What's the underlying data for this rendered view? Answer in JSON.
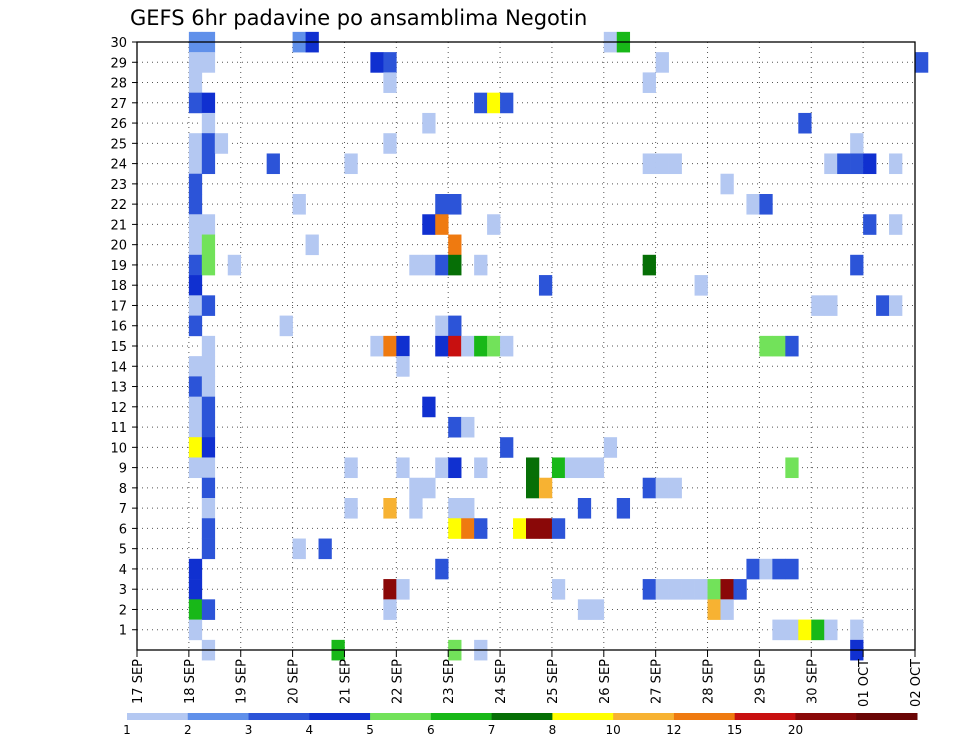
{
  "chart_data": {
    "type": "heatmap",
    "title": "GEFS 6hr padavine po ansamblima Negotin",
    "xlabel": "",
    "ylabel": "",
    "x_ticks": [
      "17 SEP",
      "18 SEP",
      "19 SEP",
      "20 SEP",
      "21 SEP",
      "22 SEP",
      "23 SEP",
      "24 SEP",
      "25 SEP",
      "26 SEP",
      "27 SEP",
      "28 SEP",
      "29 SEP",
      "30 SEP",
      "01 OCT",
      "02 OCT"
    ],
    "y_ticks": [
      1,
      2,
      3,
      4,
      5,
      6,
      7,
      8,
      9,
      10,
      11,
      12,
      13,
      14,
      15,
      16,
      17,
      18,
      19,
      20,
      21,
      22,
      23,
      24,
      25,
      26,
      27,
      28,
      29,
      30
    ],
    "ylim": [
      0,
      30
    ],
    "xlim_days": [
      0,
      15
    ],
    "steps_per_day": 4,
    "grid": true,
    "legend_placement": "bottom",
    "legend": {
      "levels": [
        "1",
        "2",
        "3",
        "4",
        "5",
        "6",
        "7",
        "8",
        "10",
        "12",
        "15",
        "20"
      ],
      "colors": [
        "#b4c8f2",
        "#6090ea",
        "#2c54d8",
        "#1030d0",
        "#72e25a",
        "#18b818",
        "#066f06",
        "#ffff00",
        "#f7b232",
        "#ef7a10",
        "#c81010",
        "#8a0808",
        "#6a0606"
      ]
    },
    "points": [
      {
        "member": 30,
        "day": 1.0,
        "bin": 1
      },
      {
        "member": 30,
        "day": 1.25,
        "bin": 1
      },
      {
        "member": 30,
        "day": 3.0,
        "bin": 1
      },
      {
        "member": 30,
        "day": 3.25,
        "bin": 3
      },
      {
        "member": 30,
        "day": 9.0,
        "bin": 0
      },
      {
        "member": 30,
        "day": 9.25,
        "bin": 5
      },
      {
        "member": 29,
        "day": 1.0,
        "bin": 0
      },
      {
        "member": 29,
        "day": 1.25,
        "bin": 0
      },
      {
        "member": 29,
        "day": 4.5,
        "bin": 3
      },
      {
        "member": 29,
        "day": 4.75,
        "bin": 2
      },
      {
        "member": 29,
        "day": 10.0,
        "bin": 0
      },
      {
        "member": 29,
        "day": 15.0,
        "bin": 2
      },
      {
        "member": 28,
        "day": 1.0,
        "bin": 0
      },
      {
        "member": 28,
        "day": 4.75,
        "bin": 0
      },
      {
        "member": 28,
        "day": 9.75,
        "bin": 0
      },
      {
        "member": 27,
        "day": 1.0,
        "bin": 2
      },
      {
        "member": 27,
        "day": 1.25,
        "bin": 3
      },
      {
        "member": 27,
        "day": 6.5,
        "bin": 2
      },
      {
        "member": 27,
        "day": 6.75,
        "bin": 7
      },
      {
        "member": 27,
        "day": 7.0,
        "bin": 2
      },
      {
        "member": 26,
        "day": 1.25,
        "bin": 0
      },
      {
        "member": 26,
        "day": 5.5,
        "bin": 0
      },
      {
        "member": 26,
        "day": 12.75,
        "bin": 2
      },
      {
        "member": 25,
        "day": 1.0,
        "bin": 0
      },
      {
        "member": 25,
        "day": 1.25,
        "bin": 2
      },
      {
        "member": 25,
        "day": 1.5,
        "bin": 0
      },
      {
        "member": 25,
        "day": 4.75,
        "bin": 0
      },
      {
        "member": 25,
        "day": 13.75,
        "bin": 0
      },
      {
        "member": 24,
        "day": 1.0,
        "bin": 0
      },
      {
        "member": 24,
        "day": 1.25,
        "bin": 2
      },
      {
        "member": 24,
        "day": 2.5,
        "bin": 2
      },
      {
        "member": 24,
        "day": 4.0,
        "bin": 0
      },
      {
        "member": 24,
        "day": 9.75,
        "bin": 0
      },
      {
        "member": 24,
        "day": 10.0,
        "bin": 0
      },
      {
        "member": 24,
        "day": 10.25,
        "bin": 0
      },
      {
        "member": 24,
        "day": 13.25,
        "bin": 0
      },
      {
        "member": 24,
        "day": 13.5,
        "bin": 2
      },
      {
        "member": 24,
        "day": 13.75,
        "bin": 2
      },
      {
        "member": 24,
        "day": 14.0,
        "bin": 3
      },
      {
        "member": 24,
        "day": 14.5,
        "bin": 0
      },
      {
        "member": 23,
        "day": 1.0,
        "bin": 2
      },
      {
        "member": 23,
        "day": 11.25,
        "bin": 0
      },
      {
        "member": 22,
        "day": 1.0,
        "bin": 2
      },
      {
        "member": 22,
        "day": 3.0,
        "bin": 0
      },
      {
        "member": 22,
        "day": 5.75,
        "bin": 2
      },
      {
        "member": 22,
        "day": 6.0,
        "bin": 2
      },
      {
        "member": 22,
        "day": 11.75,
        "bin": 0
      },
      {
        "member": 22,
        "day": 12.0,
        "bin": 2
      },
      {
        "member": 21,
        "day": 1.0,
        "bin": 0
      },
      {
        "member": 21,
        "day": 1.25,
        "bin": 0
      },
      {
        "member": 21,
        "day": 5.5,
        "bin": 3
      },
      {
        "member": 21,
        "day": 5.75,
        "bin": 9
      },
      {
        "member": 21,
        "day": 6.75,
        "bin": 0
      },
      {
        "member": 21,
        "day": 14.0,
        "bin": 2
      },
      {
        "member": 21,
        "day": 14.5,
        "bin": 0
      },
      {
        "member": 20,
        "day": 1.0,
        "bin": 0
      },
      {
        "member": 20,
        "day": 1.25,
        "bin": 4
      },
      {
        "member": 20,
        "day": 3.25,
        "bin": 0
      },
      {
        "member": 20,
        "day": 6.0,
        "bin": 9
      },
      {
        "member": 19,
        "day": 1.0,
        "bin": 2
      },
      {
        "member": 19,
        "day": 1.25,
        "bin": 4
      },
      {
        "member": 19,
        "day": 1.75,
        "bin": 0
      },
      {
        "member": 19,
        "day": 5.25,
        "bin": 0
      },
      {
        "member": 19,
        "day": 5.5,
        "bin": 0
      },
      {
        "member": 19,
        "day": 5.75,
        "bin": 2
      },
      {
        "member": 19,
        "day": 6.0,
        "bin": 6
      },
      {
        "member": 19,
        "day": 6.5,
        "bin": 0
      },
      {
        "member": 19,
        "day": 9.75,
        "bin": 6
      },
      {
        "member": 19,
        "day": 13.75,
        "bin": 2
      },
      {
        "member": 18,
        "day": 1.0,
        "bin": 3
      },
      {
        "member": 18,
        "day": 7.75,
        "bin": 2
      },
      {
        "member": 18,
        "day": 10.75,
        "bin": 0
      },
      {
        "member": 17,
        "day": 1.0,
        "bin": 0
      },
      {
        "member": 17,
        "day": 1.25,
        "bin": 2
      },
      {
        "member": 17,
        "day": 13.0,
        "bin": 0
      },
      {
        "member": 17,
        "day": 13.25,
        "bin": 0
      },
      {
        "member": 17,
        "day": 14.25,
        "bin": 2
      },
      {
        "member": 17,
        "day": 14.5,
        "bin": 0
      },
      {
        "member": 16,
        "day": 1.0,
        "bin": 2
      },
      {
        "member": 16,
        "day": 2.75,
        "bin": 0
      },
      {
        "member": 16,
        "day": 5.75,
        "bin": 0
      },
      {
        "member": 16,
        "day": 6.0,
        "bin": 2
      },
      {
        "member": 15,
        "day": 1.25,
        "bin": 0
      },
      {
        "member": 15,
        "day": 4.5,
        "bin": 0
      },
      {
        "member": 15,
        "day": 4.75,
        "bin": 9
      },
      {
        "member": 15,
        "day": 5.0,
        "bin": 3
      },
      {
        "member": 15,
        "day": 5.75,
        "bin": 3
      },
      {
        "member": 15,
        "day": 6.0,
        "bin": 10
      },
      {
        "member": 15,
        "day": 6.25,
        "bin": 0
      },
      {
        "member": 15,
        "day": 6.5,
        "bin": 5
      },
      {
        "member": 15,
        "day": 6.75,
        "bin": 4
      },
      {
        "member": 15,
        "day": 7.0,
        "bin": 0
      },
      {
        "member": 15,
        "day": 12.0,
        "bin": 4
      },
      {
        "member": 15,
        "day": 12.25,
        "bin": 4
      },
      {
        "member": 15,
        "day": 12.5,
        "bin": 2
      },
      {
        "member": 14,
        "day": 1.0,
        "bin": 0
      },
      {
        "member": 14,
        "day": 1.25,
        "bin": 0
      },
      {
        "member": 14,
        "day": 5.0,
        "bin": 0
      },
      {
        "member": 13,
        "day": 1.0,
        "bin": 2
      },
      {
        "member": 13,
        "day": 1.25,
        "bin": 0
      },
      {
        "member": 12,
        "day": 1.0,
        "bin": 0
      },
      {
        "member": 12,
        "day": 1.25,
        "bin": 2
      },
      {
        "member": 12,
        "day": 5.5,
        "bin": 3
      },
      {
        "member": 11,
        "day": 1.0,
        "bin": 0
      },
      {
        "member": 11,
        "day": 1.25,
        "bin": 2
      },
      {
        "member": 11,
        "day": 6.0,
        "bin": 2
      },
      {
        "member": 11,
        "day": 6.25,
        "bin": 0
      },
      {
        "member": 10,
        "day": 1.0,
        "bin": 7
      },
      {
        "member": 10,
        "day": 1.25,
        "bin": 3
      },
      {
        "member": 10,
        "day": 7.0,
        "bin": 2
      },
      {
        "member": 10,
        "day": 9.0,
        "bin": 0
      },
      {
        "member": 9,
        "day": 1.0,
        "bin": 0
      },
      {
        "member": 9,
        "day": 1.25,
        "bin": 0
      },
      {
        "member": 9,
        "day": 4.0,
        "bin": 0
      },
      {
        "member": 9,
        "day": 5.0,
        "bin": 0
      },
      {
        "member": 9,
        "day": 5.75,
        "bin": 0
      },
      {
        "member": 9,
        "day": 6.0,
        "bin": 3
      },
      {
        "member": 9,
        "day": 6.5,
        "bin": 0
      },
      {
        "member": 9,
        "day": 7.5,
        "bin": 6
      },
      {
        "member": 9,
        "day": 8.0,
        "bin": 5
      },
      {
        "member": 9,
        "day": 8.25,
        "bin": 0
      },
      {
        "member": 9,
        "day": 8.5,
        "bin": 0
      },
      {
        "member": 9,
        "day": 8.75,
        "bin": 0
      },
      {
        "member": 9,
        "day": 12.5,
        "bin": 4
      },
      {
        "member": 8,
        "day": 1.25,
        "bin": 2
      },
      {
        "member": 8,
        "day": 5.25,
        "bin": 0
      },
      {
        "member": 8,
        "day": 5.5,
        "bin": 0
      },
      {
        "member": 8,
        "day": 7.5,
        "bin": 6
      },
      {
        "member": 8,
        "day": 7.75,
        "bin": 8
      },
      {
        "member": 8,
        "day": 9.75,
        "bin": 2
      },
      {
        "member": 8,
        "day": 10.0,
        "bin": 0
      },
      {
        "member": 8,
        "day": 10.25,
        "bin": 0
      },
      {
        "member": 7,
        "day": 1.25,
        "bin": 0
      },
      {
        "member": 7,
        "day": 4.0,
        "bin": 0
      },
      {
        "member": 7,
        "day": 4.75,
        "bin": 8
      },
      {
        "member": 7,
        "day": 5.25,
        "bin": 0
      },
      {
        "member": 7,
        "day": 6.0,
        "bin": 0
      },
      {
        "member": 7,
        "day": 6.25,
        "bin": 0
      },
      {
        "member": 7,
        "day": 8.5,
        "bin": 2
      },
      {
        "member": 7,
        "day": 9.25,
        "bin": 2
      },
      {
        "member": 6,
        "day": 1.25,
        "bin": 2
      },
      {
        "member": 6,
        "day": 6.0,
        "bin": 7
      },
      {
        "member": 6,
        "day": 6.25,
        "bin": 9
      },
      {
        "member": 6,
        "day": 6.5,
        "bin": 2
      },
      {
        "member": 6,
        "day": 7.25,
        "bin": 7
      },
      {
        "member": 6,
        "day": 7.5,
        "bin": 11
      },
      {
        "member": 6,
        "day": 7.75,
        "bin": 11
      },
      {
        "member": 6,
        "day": 8.0,
        "bin": 2
      },
      {
        "member": 5,
        "day": 1.25,
        "bin": 2
      },
      {
        "member": 5,
        "day": 3.0,
        "bin": 0
      },
      {
        "member": 5,
        "day": 3.5,
        "bin": 2
      },
      {
        "member": 4,
        "day": 1.0,
        "bin": 3
      },
      {
        "member": 4,
        "day": 5.75,
        "bin": 2
      },
      {
        "member": 4,
        "day": 11.75,
        "bin": 2
      },
      {
        "member": 4,
        "day": 12.0,
        "bin": 0
      },
      {
        "member": 4,
        "day": 12.25,
        "bin": 2
      },
      {
        "member": 4,
        "day": 12.5,
        "bin": 2
      },
      {
        "member": 3,
        "day": 1.0,
        "bin": 3
      },
      {
        "member": 3,
        "day": 4.75,
        "bin": 11
      },
      {
        "member": 3,
        "day": 5.0,
        "bin": 0
      },
      {
        "member": 3,
        "day": 8.0,
        "bin": 0
      },
      {
        "member": 3,
        "day": 9.75,
        "bin": 2
      },
      {
        "member": 3,
        "day": 10.0,
        "bin": 0
      },
      {
        "member": 3,
        "day": 10.25,
        "bin": 0
      },
      {
        "member": 3,
        "day": 10.5,
        "bin": 0
      },
      {
        "member": 3,
        "day": 10.75,
        "bin": 0
      },
      {
        "member": 3,
        "day": 11.0,
        "bin": 4
      },
      {
        "member": 3,
        "day": 11.25,
        "bin": 11
      },
      {
        "member": 3,
        "day": 11.5,
        "bin": 2
      },
      {
        "member": 2,
        "day": 1.0,
        "bin": 5
      },
      {
        "member": 2,
        "day": 1.25,
        "bin": 2
      },
      {
        "member": 2,
        "day": 4.75,
        "bin": 0
      },
      {
        "member": 2,
        "day": 8.5,
        "bin": 0
      },
      {
        "member": 2,
        "day": 8.75,
        "bin": 0
      },
      {
        "member": 2,
        "day": 11.0,
        "bin": 8
      },
      {
        "member": 2,
        "day": 11.25,
        "bin": 0
      },
      {
        "member": 1,
        "day": 1.0,
        "bin": 0
      },
      {
        "member": 1,
        "day": 12.25,
        "bin": 0
      },
      {
        "member": 1,
        "day": 12.5,
        "bin": 0
      },
      {
        "member": 1,
        "day": 12.75,
        "bin": 7
      },
      {
        "member": 1,
        "day": 13.0,
        "bin": 5
      },
      {
        "member": 1,
        "day": 13.25,
        "bin": 0
      },
      {
        "member": 1,
        "day": 13.75,
        "bin": 0
      },
      {
        "member": 0,
        "day": 1.25,
        "bin": 0
      },
      {
        "member": 0,
        "day": 3.75,
        "bin": 5
      },
      {
        "member": 0,
        "day": 6.0,
        "bin": 4
      },
      {
        "member": 0,
        "day": 6.5,
        "bin": 0
      },
      {
        "member": 0,
        "day": 13.75,
        "bin": 3
      }
    ]
  }
}
